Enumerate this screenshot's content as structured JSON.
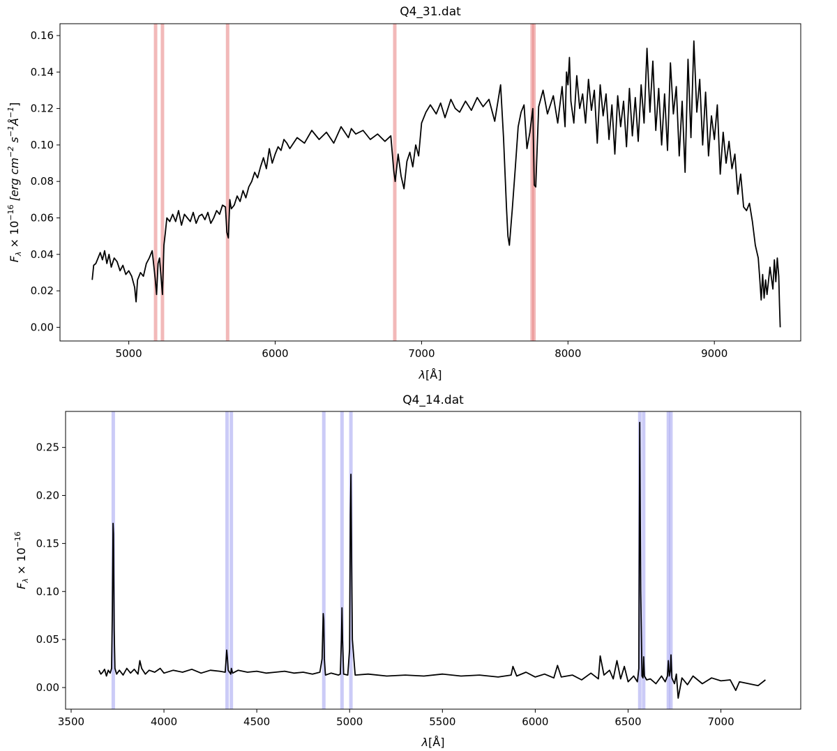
{
  "chart_data": [
    {
      "type": "line",
      "title": "Q4_31.dat",
      "xlabel": "λ[Å]",
      "ylabel": "F_λ × 10^−16 [erg cm^−2 s^−1Å^−1]",
      "ylabel_parts": {
        "f": "F",
        "sub": "λ",
        "mult": " × 10",
        "exp": "−16",
        "unit": " [erg cm",
        "u1": "−2",
        "s": " s",
        "u2": "−1",
        "a": "Å",
        "u3": "−1",
        "close": "]"
      },
      "xlabel_parts": {
        "lam": "λ",
        "unit": "[Å]"
      },
      "xlim": [
        4530,
        9590
      ],
      "ylim": [
        -0.0075,
        0.1665
      ],
      "xticks": [
        5000,
        6000,
        7000,
        8000,
        9000
      ],
      "yticks": [
        0.0,
        0.02,
        0.04,
        0.06,
        0.08,
        0.1,
        0.12,
        0.14,
        0.16
      ],
      "ytick_labels": [
        "0.00",
        "0.02",
        "0.04",
        "0.06",
        "0.08",
        "0.10",
        "0.12",
        "0.14",
        "0.16"
      ],
      "grid": false,
      "line_color": "#000000",
      "highlight_color": "#e88080",
      "highlight_lines": [
        5183,
        5230,
        5675,
        6817,
        7755,
        7768
      ],
      "series": [
        {
          "x": [
            4750,
            4760,
            4775,
            4790,
            4805,
            4820,
            4835,
            4850,
            4865,
            4880,
            4900,
            4920,
            4940,
            4960,
            4980,
            5000,
            5020,
            5040,
            5050,
            5060,
            5080,
            5100,
            5120,
            5140,
            5160,
            5180,
            5190,
            5200,
            5210,
            5220,
            5230,
            5240,
            5250,
            5260,
            5280,
            5300,
            5320,
            5340,
            5360,
            5380,
            5400,
            5420,
            5440,
            5460,
            5480,
            5500,
            5520,
            5540,
            5560,
            5580,
            5600,
            5620,
            5640,
            5660,
            5670,
            5680,
            5690,
            5700,
            5720,
            5740,
            5760,
            5780,
            5800,
            5820,
            5840,
            5860,
            5880,
            5900,
            5920,
            5940,
            5960,
            5980,
            6000,
            6020,
            6040,
            6060,
            6080,
            6100,
            6150,
            6200,
            6250,
            6300,
            6350,
            6400,
            6450,
            6500,
            6520,
            6550,
            6600,
            6650,
            6700,
            6750,
            6790,
            6810,
            6820,
            6840,
            6860,
            6880,
            6900,
            6920,
            6940,
            6960,
            6980,
            7000,
            7030,
            7060,
            7100,
            7130,
            7160,
            7200,
            7230,
            7260,
            7300,
            7340,
            7380,
            7420,
            7460,
            7500,
            7540,
            7560,
            7580,
            7590,
            7600,
            7620,
            7640,
            7660,
            7680,
            7700,
            7720,
            7740,
            7760,
            7770,
            7780,
            7800,
            7830,
            7860,
            7900,
            7930,
            7960,
            7980,
            7990,
            8000,
            8010,
            8020,
            8040,
            8060,
            8080,
            8100,
            8120,
            8140,
            8160,
            8180,
            8200,
            8220,
            8240,
            8260,
            8280,
            8300,
            8320,
            8340,
            8360,
            8380,
            8400,
            8420,
            8440,
            8460,
            8480,
            8500,
            8520,
            8540,
            8560,
            8580,
            8600,
            8620,
            8640,
            8660,
            8680,
            8700,
            8720,
            8740,
            8760,
            8780,
            8800,
            8820,
            8840,
            8860,
            8880,
            8900,
            8920,
            8940,
            8960,
            8980,
            9000,
            9020,
            9040,
            9060,
            9080,
            9100,
            9120,
            9140,
            9160,
            9180,
            9200,
            9220,
            9240,
            9260,
            9280,
            9300,
            9310,
            9320,
            9330,
            9340,
            9350,
            9360,
            9380,
            9400,
            9410,
            9420,
            9430,
            9440,
            9445,
            9450
          ],
          "y": [
            0.026,
            0.034,
            0.035,
            0.038,
            0.041,
            0.037,
            0.042,
            0.035,
            0.04,
            0.033,
            0.038,
            0.036,
            0.031,
            0.034,
            0.029,
            0.031,
            0.028,
            0.022,
            0.014,
            0.026,
            0.03,
            0.028,
            0.035,
            0.038,
            0.042,
            0.027,
            0.018,
            0.035,
            0.038,
            0.028,
            0.018,
            0.045,
            0.052,
            0.06,
            0.058,
            0.062,
            0.058,
            0.064,
            0.056,
            0.062,
            0.06,
            0.058,
            0.063,
            0.057,
            0.061,
            0.062,
            0.059,
            0.063,
            0.057,
            0.06,
            0.064,
            0.062,
            0.067,
            0.066,
            0.052,
            0.049,
            0.07,
            0.065,
            0.067,
            0.072,
            0.069,
            0.075,
            0.071,
            0.077,
            0.08,
            0.085,
            0.082,
            0.088,
            0.093,
            0.087,
            0.098,
            0.09,
            0.095,
            0.099,
            0.097,
            0.103,
            0.101,
            0.098,
            0.104,
            0.101,
            0.108,
            0.103,
            0.107,
            0.101,
            0.11,
            0.104,
            0.109,
            0.106,
            0.108,
            0.103,
            0.106,
            0.102,
            0.105,
            0.086,
            0.08,
            0.095,
            0.083,
            0.076,
            0.091,
            0.096,
            0.088,
            0.1,
            0.094,
            0.112,
            0.118,
            0.122,
            0.117,
            0.123,
            0.115,
            0.125,
            0.12,
            0.118,
            0.124,
            0.119,
            0.126,
            0.121,
            0.125,
            0.113,
            0.133,
            0.104,
            0.066,
            0.05,
            0.045,
            0.065,
            0.087,
            0.11,
            0.118,
            0.122,
            0.098,
            0.107,
            0.12,
            0.078,
            0.077,
            0.121,
            0.13,
            0.117,
            0.127,
            0.112,
            0.132,
            0.11,
            0.14,
            0.133,
            0.148,
            0.124,
            0.112,
            0.138,
            0.12,
            0.128,
            0.112,
            0.136,
            0.119,
            0.13,
            0.101,
            0.133,
            0.116,
            0.128,
            0.103,
            0.122,
            0.095,
            0.127,
            0.11,
            0.124,
            0.099,
            0.131,
            0.105,
            0.126,
            0.102,
            0.133,
            0.112,
            0.153,
            0.118,
            0.146,
            0.108,
            0.131,
            0.1,
            0.128,
            0.097,
            0.145,
            0.117,
            0.132,
            0.094,
            0.124,
            0.085,
            0.147,
            0.104,
            0.157,
            0.118,
            0.136,
            0.1,
            0.129,
            0.094,
            0.116,
            0.103,
            0.122,
            0.084,
            0.107,
            0.09,
            0.102,
            0.087,
            0.095,
            0.073,
            0.084,
            0.066,
            0.064,
            0.068,
            0.058,
            0.045,
            0.038,
            0.027,
            0.015,
            0.029,
            0.016,
            0.026,
            0.018,
            0.033,
            0.021,
            0.037,
            0.025,
            0.038,
            0.028,
            0.012,
            0.0
          ]
        }
      ]
    },
    {
      "type": "line",
      "title": "Q4_14.dat",
      "xlabel": "λ[Å]",
      "ylabel": "F_λ × 10^−16",
      "ylabel_parts": {
        "f": "F",
        "sub": "λ",
        "mult": "  × 10",
        "exp": "−16"
      },
      "xlabel_parts": {
        "lam": "λ",
        "unit": "[Å]"
      },
      "xlim": [
        3470,
        7430
      ],
      "ylim": [
        -0.0225,
        0.2875
      ],
      "xticks": [
        3500,
        4000,
        4500,
        5000,
        5500,
        6000,
        6500,
        7000
      ],
      "yticks": [
        0.0,
        0.05,
        0.1,
        0.15,
        0.2,
        0.25
      ],
      "ytick_labels": [
        "0.00",
        "0.05",
        "0.10",
        "0.15",
        "0.20",
        "0.25"
      ],
      "grid": false,
      "line_color": "#000000",
      "highlight_color": "#a0a0f0",
      "highlight_lines": [
        3727,
        4340,
        4363,
        4861,
        4959,
        5007,
        6563,
        6584,
        6717,
        6731
      ],
      "series": [
        {
          "x": [
            3650,
            3660,
            3670,
            3680,
            3690,
            3700,
            3710,
            3718,
            3722,
            3726,
            3728,
            3732,
            3736,
            3745,
            3760,
            3780,
            3800,
            3820,
            3840,
            3860,
            3870,
            3880,
            3900,
            3920,
            3950,
            3980,
            4000,
            4050,
            4100,
            4150,
            4200,
            4250,
            4300,
            4330,
            4338,
            4342,
            4346,
            4360,
            4363,
            4370,
            4400,
            4450,
            4500,
            4550,
            4600,
            4650,
            4700,
            4750,
            4800,
            4840,
            4852,
            4858,
            4861,
            4864,
            4870,
            4900,
            4940,
            4950,
            4956,
            4959,
            4962,
            4968,
            4990,
            5000,
            5004,
            5007,
            5010,
            5015,
            5030,
            5100,
            5200,
            5300,
            5400,
            5500,
            5600,
            5700,
            5800,
            5870,
            5880,
            5900,
            5950,
            6000,
            6050,
            6100,
            6120,
            6140,
            6200,
            6250,
            6300,
            6340,
            6350,
            6370,
            6400,
            6420,
            6440,
            6460,
            6480,
            6500,
            6530,
            6550,
            6558,
            6563,
            6568,
            6575,
            6580,
            6584,
            6588,
            6600,
            6620,
            6650,
            6680,
            6700,
            6712,
            6717,
            6722,
            6728,
            6731,
            6736,
            6750,
            6760,
            6770,
            6790,
            6820,
            6850,
            6900,
            6950,
            7000,
            7050,
            7080,
            7100,
            7150,
            7200,
            7240
          ],
          "y": [
            0.018,
            0.014,
            0.016,
            0.019,
            0.012,
            0.018,
            0.015,
            0.02,
            0.08,
            0.171,
            0.16,
            0.06,
            0.02,
            0.014,
            0.018,
            0.013,
            0.02,
            0.015,
            0.019,
            0.014,
            0.028,
            0.02,
            0.014,
            0.018,
            0.016,
            0.02,
            0.015,
            0.018,
            0.016,
            0.019,
            0.015,
            0.018,
            0.017,
            0.016,
            0.039,
            0.03,
            0.018,
            0.014,
            0.02,
            0.015,
            0.018,
            0.016,
            0.017,
            0.015,
            0.016,
            0.017,
            0.015,
            0.016,
            0.014,
            0.016,
            0.03,
            0.077,
            0.07,
            0.03,
            0.013,
            0.015,
            0.013,
            0.014,
            0.05,
            0.083,
            0.05,
            0.014,
            0.013,
            0.04,
            0.18,
            0.222,
            0.15,
            0.05,
            0.013,
            0.014,
            0.012,
            0.013,
            0.012,
            0.014,
            0.012,
            0.013,
            0.011,
            0.013,
            0.022,
            0.012,
            0.016,
            0.011,
            0.014,
            0.01,
            0.023,
            0.011,
            0.013,
            0.008,
            0.015,
            0.009,
            0.033,
            0.013,
            0.018,
            0.009,
            0.028,
            0.009,
            0.022,
            0.006,
            0.012,
            0.006,
            0.02,
            0.276,
            0.1,
            0.012,
            0.01,
            0.032,
            0.012,
            0.008,
            0.009,
            0.004,
            0.012,
            0.006,
            0.012,
            0.028,
            0.012,
            0.018,
            0.034,
            0.01,
            0.004,
            0.014,
            -0.011,
            0.01,
            0.003,
            0.012,
            0.004,
            0.01,
            0.007,
            0.008,
            -0.003,
            0.006,
            0.004,
            0.002,
            0.008
          ]
        }
      ]
    }
  ]
}
